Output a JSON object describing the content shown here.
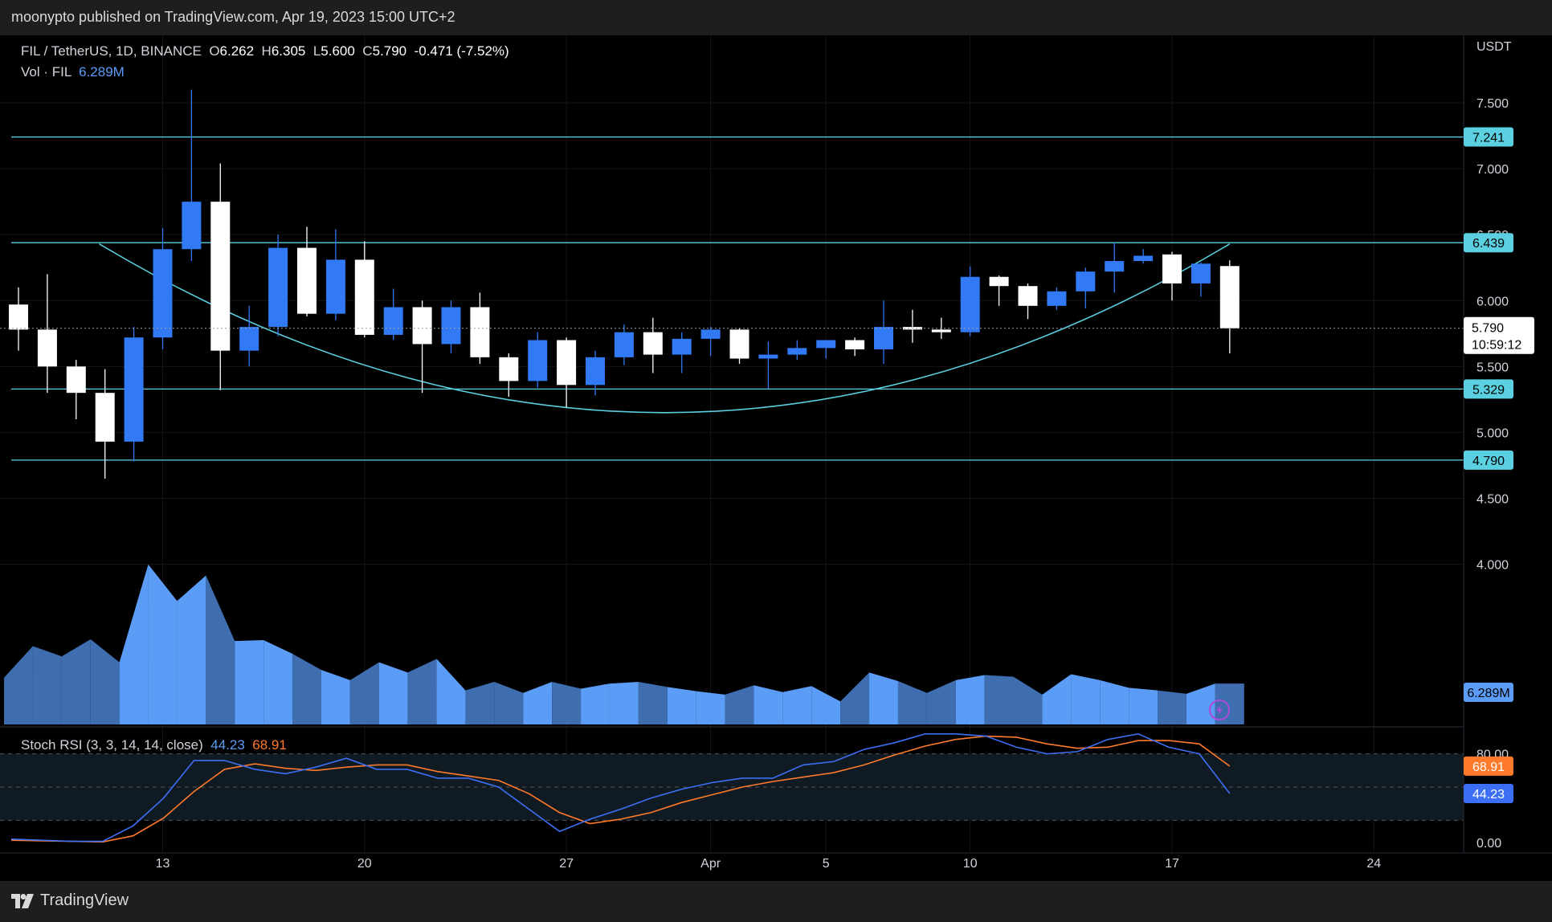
{
  "header": {
    "publisher": "moonypto published on TradingView.com, Apr 19, 2023 15:00 UTC+2"
  },
  "footer": {
    "brand": "TradingView"
  },
  "legend": {
    "symbol": "FIL / TetherUS, 1D, BINANCE",
    "o_label": "O",
    "o": "6.262",
    "h_label": "H",
    "h": "6.305",
    "l_label": "L",
    "l": "5.600",
    "c_label": "C",
    "c": "5.790",
    "change": "-0.471 (-7.52%)",
    "vol_label": "Vol · FIL",
    "vol_value": "6.289M",
    "rsi_label": "Stoch RSI (3, 3, 14, 14, close)",
    "rsi_k": "44.23",
    "rsi_d": "68.91"
  },
  "currency": "USDT",
  "colors": {
    "up": "#3179f5",
    "down": "#ffffff",
    "level": "#5ad0e0",
    "vol_up": "#5b9cf6",
    "vol_down": "#3e6db0",
    "rsi_k": "#3d6ff5",
    "rsi_d": "#ff7a2a",
    "rsi_band": "#0f1a22"
  },
  "chart_data": {
    "type": "candlestick",
    "symbol": "FIL / TetherUS",
    "timeframe": "1D",
    "exchange": "BINANCE",
    "ylim": [
      3.65,
      7.75
    ],
    "yticks": [
      "7.500",
      "7.000",
      "6.500",
      "6.000",
      "5.500",
      "5.000",
      "4.500",
      "4.000"
    ],
    "yticks_values": [
      7.5,
      7.0,
      6.5,
      6.0,
      5.5,
      5.0,
      4.5,
      4.0
    ],
    "xticks": [
      {
        "label": "13",
        "index": 5
      },
      {
        "label": "20",
        "index": 12
      },
      {
        "label": "27",
        "index": 19
      },
      {
        "label": "Apr",
        "index": 24
      },
      {
        "label": "5",
        "index": 28
      },
      {
        "label": "10",
        "index": 33
      },
      {
        "label": "17",
        "index": 40
      },
      {
        "label": "24",
        "index": 47
      }
    ],
    "candles": [
      {
        "o": 5.97,
        "h": 6.1,
        "l": 5.62,
        "c": 5.78
      },
      {
        "o": 5.78,
        "h": 6.2,
        "l": 5.3,
        "c": 5.5
      },
      {
        "o": 5.5,
        "h": 5.55,
        "l": 5.1,
        "c": 5.3
      },
      {
        "o": 5.3,
        "h": 5.48,
        "l": 4.65,
        "c": 4.93
      },
      {
        "o": 4.93,
        "h": 5.8,
        "l": 4.78,
        "c": 5.72
      },
      {
        "o": 5.72,
        "h": 6.55,
        "l": 5.63,
        "c": 6.39
      },
      {
        "o": 6.39,
        "h": 7.6,
        "l": 6.3,
        "c": 6.75
      },
      {
        "o": 6.75,
        "h": 7.04,
        "l": 5.32,
        "c": 5.62
      },
      {
        "o": 5.62,
        "h": 5.96,
        "l": 5.5,
        "c": 5.8
      },
      {
        "o": 5.8,
        "h": 6.5,
        "l": 5.73,
        "c": 6.4
      },
      {
        "o": 6.4,
        "h": 6.56,
        "l": 5.88,
        "c": 5.9
      },
      {
        "o": 5.9,
        "h": 6.54,
        "l": 5.85,
        "c": 6.31
      },
      {
        "o": 6.31,
        "h": 6.45,
        "l": 5.72,
        "c": 5.74
      },
      {
        "o": 5.74,
        "h": 6.09,
        "l": 5.7,
        "c": 5.95
      },
      {
        "o": 5.95,
        "h": 6.0,
        "l": 5.3,
        "c": 5.67
      },
      {
        "o": 5.67,
        "h": 6.0,
        "l": 5.6,
        "c": 5.95
      },
      {
        "o": 5.95,
        "h": 6.06,
        "l": 5.52,
        "c": 5.57
      },
      {
        "o": 5.57,
        "h": 5.6,
        "l": 5.27,
        "c": 5.39
      },
      {
        "o": 5.39,
        "h": 5.76,
        "l": 5.34,
        "c": 5.7
      },
      {
        "o": 5.7,
        "h": 5.72,
        "l": 5.19,
        "c": 5.36
      },
      {
        "o": 5.36,
        "h": 5.62,
        "l": 5.28,
        "c": 5.57
      },
      {
        "o": 5.57,
        "h": 5.82,
        "l": 5.51,
        "c": 5.76
      },
      {
        "o": 5.76,
        "h": 5.87,
        "l": 5.45,
        "c": 5.59
      },
      {
        "o": 5.59,
        "h": 5.76,
        "l": 5.45,
        "c": 5.71
      },
      {
        "o": 5.71,
        "h": 5.8,
        "l": 5.58,
        "c": 5.78
      },
      {
        "o": 5.78,
        "h": 5.79,
        "l": 5.52,
        "c": 5.56
      },
      {
        "o": 5.56,
        "h": 5.69,
        "l": 5.33,
        "c": 5.59
      },
      {
        "o": 5.59,
        "h": 5.7,
        "l": 5.55,
        "c": 5.64
      },
      {
        "o": 5.64,
        "h": 5.7,
        "l": 5.56,
        "c": 5.7
      },
      {
        "o": 5.7,
        "h": 5.72,
        "l": 5.58,
        "c": 5.63
      },
      {
        "o": 5.63,
        "h": 6.0,
        "l": 5.52,
        "c": 5.8
      },
      {
        "o": 5.8,
        "h": 5.93,
        "l": 5.68,
        "c": 5.78
      },
      {
        "o": 5.78,
        "h": 5.87,
        "l": 5.71,
        "c": 5.76
      },
      {
        "o": 5.76,
        "h": 6.26,
        "l": 5.73,
        "c": 6.18
      },
      {
        "o": 6.18,
        "h": 6.19,
        "l": 5.96,
        "c": 6.11
      },
      {
        "o": 6.11,
        "h": 6.13,
        "l": 5.86,
        "c": 5.96
      },
      {
        "o": 5.96,
        "h": 6.1,
        "l": 5.93,
        "c": 6.07
      },
      {
        "o": 6.07,
        "h": 6.25,
        "l": 5.94,
        "c": 6.22
      },
      {
        "o": 6.22,
        "h": 6.44,
        "l": 6.06,
        "c": 6.3
      },
      {
        "o": 6.3,
        "h": 6.39,
        "l": 6.28,
        "c": 6.34
      },
      {
        "o": 6.35,
        "h": 6.37,
        "l": 6.0,
        "c": 6.13
      },
      {
        "o": 6.13,
        "h": 6.29,
        "l": 6.03,
        "c": 6.28
      },
      {
        "o": 6.262,
        "h": 6.305,
        "l": 5.6,
        "c": 5.79
      }
    ],
    "levels": [
      {
        "value": 7.241,
        "label": "7.241"
      },
      {
        "value": 6.439,
        "label": "6.439"
      },
      {
        "value": 5.329,
        "label": "5.329"
      },
      {
        "value": 4.79,
        "label": "4.790"
      }
    ],
    "last_price": {
      "value": 5.79,
      "label": "5.790",
      "countdown": "10:59:12"
    },
    "arc": {
      "x_start_index": 2.8,
      "x_end_index": 42,
      "y_start": 6.43,
      "y_bottom": 5.15,
      "y_end": 6.43
    },
    "volume": {
      "label": "6.289M",
      "values": [
        0.55,
        0.92,
        0.8,
        1.0,
        0.73,
        1.88,
        1.45,
        1.75,
        0.98,
        0.99,
        0.83,
        0.64,
        0.52,
        0.73,
        0.61,
        0.77,
        0.4,
        0.5,
        0.37,
        0.5,
        0.42,
        0.48,
        0.5,
        0.44,
        0.39,
        0.35,
        0.46,
        0.38,
        0.45,
        0.27,
        0.61,
        0.51,
        0.37,
        0.52,
        0.58,
        0.56,
        0.35,
        0.59,
        0.52,
        0.43,
        0.4,
        0.36,
        0.48
      ],
      "max": 2.0
    },
    "stoch_rsi": {
      "ylim": [
        -8,
        108
      ],
      "bands": [
        80,
        50,
        20
      ],
      "ytick": "0.00",
      "k_label": "44.23",
      "d_label": "68.91",
      "k": [
        3,
        2,
        1,
        1,
        15,
        40,
        74,
        74,
        66,
        62,
        68,
        76,
        66,
        66,
        58,
        58,
        50,
        30,
        10,
        21,
        30,
        40,
        48,
        54,
        58,
        58,
        70,
        73,
        84,
        90,
        98,
        98,
        96,
        86,
        80,
        82,
        93,
        98,
        86,
        80,
        44.23
      ],
      "d": [
        2,
        1.5,
        1,
        0.5,
        6,
        22,
        46,
        66,
        71,
        67,
        65,
        68,
        70,
        70,
        64,
        60,
        56,
        44,
        27,
        17,
        21,
        27,
        36,
        43,
        50,
        55,
        59,
        63,
        70,
        79,
        87,
        93,
        96,
        95,
        89,
        85,
        86,
        92,
        92,
        89,
        68.91
      ],
      "k_start_index": 0
    }
  }
}
